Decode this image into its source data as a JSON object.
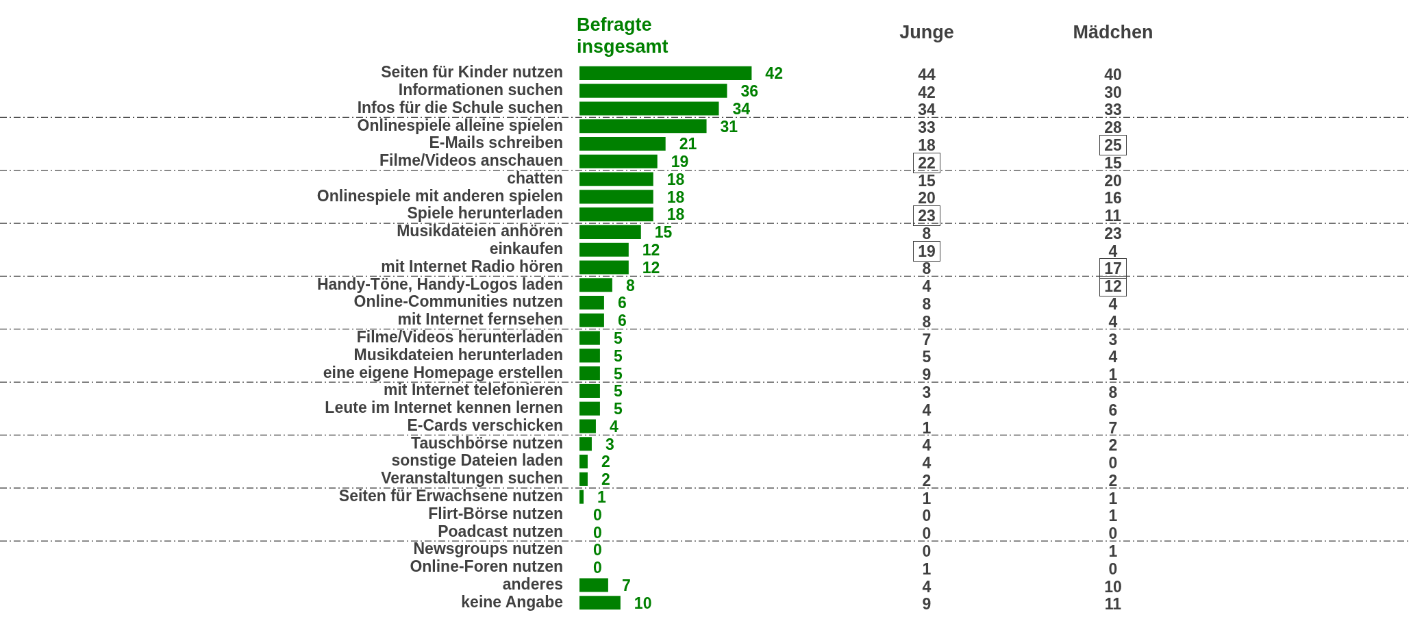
{
  "chart_data": [
    {
      "type": "bar",
      "orientation": "horizontal",
      "data_labels": true,
      "categories": [
        "Seiten für Kinder nutzen",
        "Informationen suchen",
        "Infos für die Schule suchen",
        "Onlinespiele alleine spielen",
        "E-Mails schreiben",
        "Filme/Videos anschauen",
        "chatten",
        "Onlinespiele mit anderen spielen",
        "Spiele herunterladen",
        "Musikdateien anhören",
        "einkaufen",
        "mit Internet Radio hören",
        "Handy-Töne, Handy-Logos laden",
        "Online-Communities nutzen",
        "mit Internet fernsehen",
        "Filme/Videos herunterladen",
        "Musikdateien herunterladen",
        "eine eigene Homepage erstellen",
        "mit Internet telefonieren",
        "Leute im Internet kennen lernen",
        "E-Cards verschicken",
        "Tauschbörse nutzen",
        "sonstige Dateien laden",
        "Veranstaltungen suchen",
        "Seiten für Erwachsene nutzen",
        "Flirt-Börse nutzen",
        "Poadcast nutzen",
        "Newsgroups nutzen",
        "Online-Foren nutzen",
        "anderes",
        "keine Angabe"
      ],
      "series": [
        {
          "name": "Befragte insgesamt",
          "type": "bar",
          "color": "#008000",
          "values": [
            42,
            36,
            34,
            31,
            21,
            19,
            18,
            18,
            18,
            15,
            12,
            12,
            8,
            6,
            6,
            5,
            5,
            5,
            5,
            5,
            4,
            3,
            2,
            2,
            1,
            0,
            0,
            0,
            0,
            7,
            10
          ]
        }
      ]
    },
    {
      "type": "other",
      "title": "Junge",
      "color": "#404040",
      "value_labels": [
        "44",
        "42",
        "34",
        "33",
        "18",
        "22",
        "15",
        "20",
        "23",
        "8",
        "19",
        "8",
        "4",
        "8",
        "8",
        "7",
        "5",
        "9",
        "3",
        "4",
        "1",
        "4",
        "4",
        "2",
        "1",
        "0",
        "0",
        "0",
        "1",
        "4",
        "9"
      ]
    },
    {
      "type": "other",
      "title": "Mädchen",
      "color": "#404040",
      "value_labels": [
        "40",
        "30",
        "33",
        "28",
        "25",
        "15",
        "20",
        "16",
        "11",
        "23",
        "4",
        "17",
        "12",
        "4",
        "4",
        "3",
        "4",
        "1",
        "8",
        "6",
        "7",
        "2",
        "0",
        "2",
        "1",
        "1",
        "0",
        "1",
        "0",
        "10",
        "11"
      ]
    }
  ]
}
